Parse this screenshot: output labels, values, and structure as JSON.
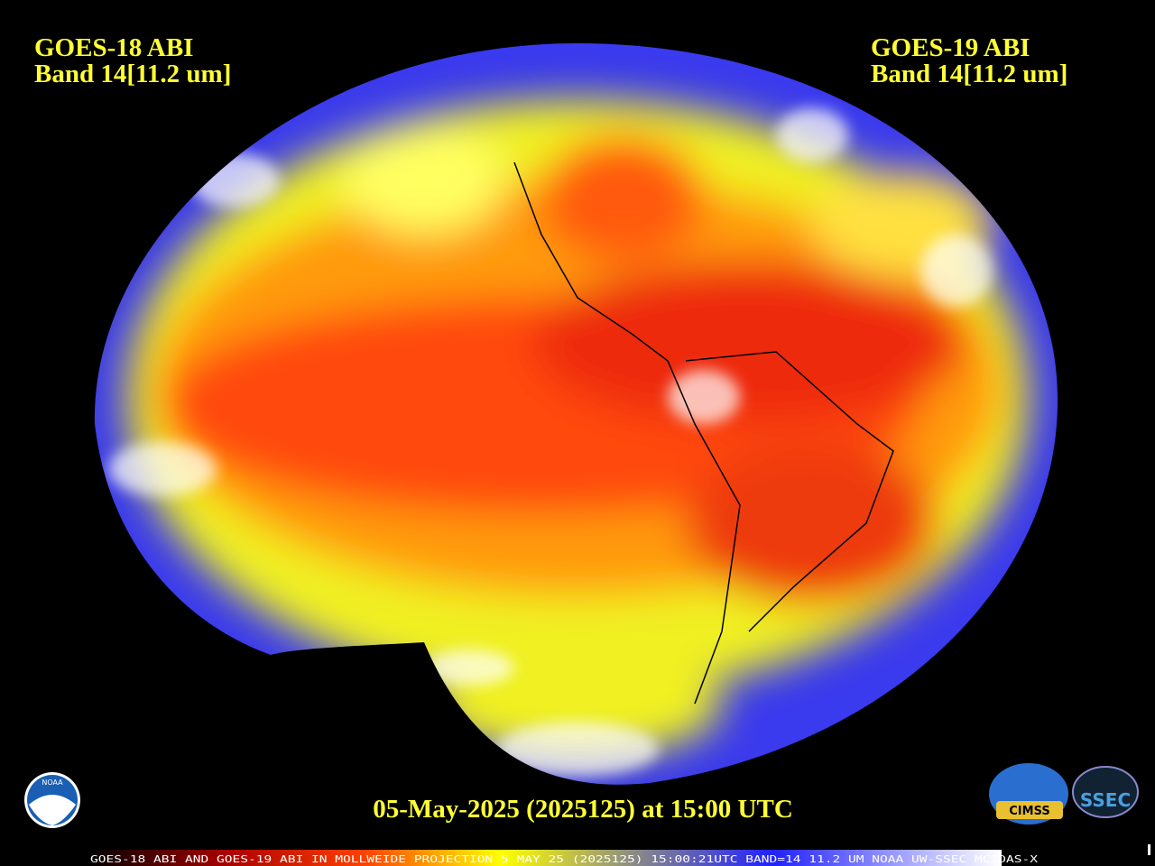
{
  "left_label": {
    "satellite": "GOES-18 ABI",
    "band": "Band 14[11.2 um]"
  },
  "right_label": {
    "satellite": "GOES-19 ABI",
    "band": "Band 14[11.2 um]"
  },
  "timestamp": "05-May-2025 (2025125) at 15:00 UTC",
  "footer": "GOES-18 ABI AND GOES-19 ABI IN MOLLWEIDE PROJECTION 5 MAY 25 (2025125) 15:00:21UTC BAND=14 11.2 UM NOAA UW-SSEC MCIDAS-X",
  "logos": {
    "noaa": "NOAA",
    "cimss": "CIMSS",
    "ssec": "SSEC"
  }
}
